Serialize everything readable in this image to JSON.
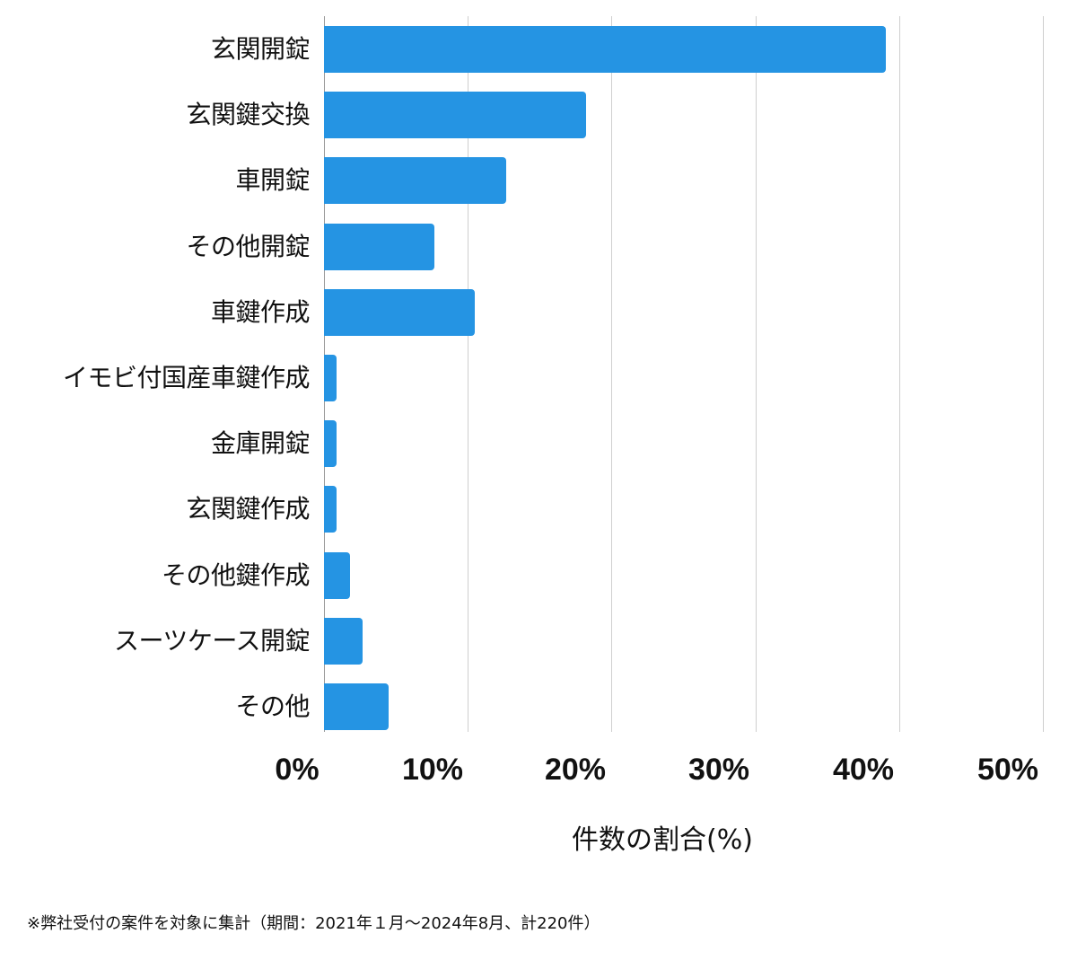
{
  "chart_data": {
    "type": "bar",
    "orientation": "horizontal",
    "title": "",
    "xlabel": "件数の割合(%)",
    "ylabel": "",
    "xlim": [
      0,
      50
    ],
    "xticks": [
      "0%",
      "10%",
      "20%",
      "30%",
      "40%",
      "50%"
    ],
    "grid": true,
    "bar_color": "#2594e3",
    "categories": [
      "玄関開錠",
      "玄関鍵交換",
      "車開錠",
      "その他開錠",
      "車鍵作成",
      "イモビ付国産車鍵作成",
      "金庫開錠",
      "玄関鍵作成",
      "その他鍵作成",
      "スーツケース開錠",
      "その他"
    ],
    "values": [
      39.1,
      18.2,
      12.7,
      7.7,
      10.5,
      0.9,
      0.9,
      0.9,
      1.8,
      2.7,
      4.5
    ]
  },
  "axis": {
    "ticks": [
      "0%",
      "10%",
      "20%",
      "30%",
      "40%",
      "50%"
    ],
    "label": "件数の割合(%)"
  },
  "footnote": "※弊社受付の案件を対象に集計（期間：2021年１月〜2024年8月、計220件）"
}
